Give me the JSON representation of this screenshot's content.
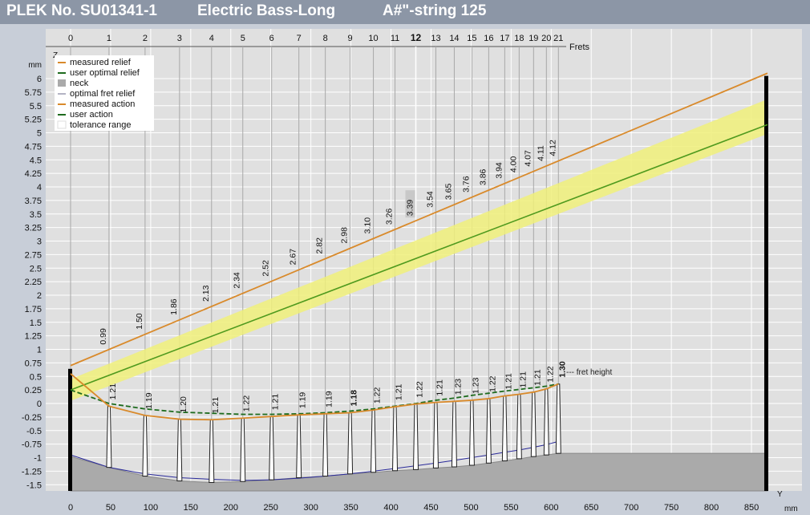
{
  "window": {
    "title_parts": [
      "PLEK No. SU01341-1",
      "Electric Bass-Long",
      "A#\"-string 125"
    ]
  },
  "chart_data": {
    "type": "line",
    "xlabel": "mm",
    "ylabel": "mm",
    "x_axis_letter": "Y",
    "y_axis_letter": "Z",
    "top_axis_label": "Frets",
    "fret_height_label": "--- fret height",
    "xlim": [
      -5,
      870
    ],
    "ylim": [
      -1.65,
      6.4
    ],
    "x_ticks": [
      0,
      50,
      100,
      150,
      200,
      250,
      300,
      350,
      400,
      450,
      500,
      550,
      600,
      650,
      700,
      750,
      800,
      850
    ],
    "y_ticks": [
      -1.5,
      -1.25,
      -1,
      -0.75,
      -0.5,
      -0.25,
      0,
      0.25,
      0.5,
      0.75,
      1,
      1.25,
      1.5,
      1.75,
      2,
      2.25,
      2.5,
      2.75,
      3,
      3.25,
      3.5,
      3.75,
      4,
      4.25,
      4.5,
      4.75,
      5,
      5.25,
      5.5,
      5.75,
      6
    ],
    "grid": true,
    "legend_position": "top-left",
    "legend": [
      {
        "label": "measured relief",
        "color": "#d98a2b",
        "kind": "line"
      },
      {
        "label": "user optimal relief",
        "color": "#1e6b1e",
        "kind": "line"
      },
      {
        "label": "neck",
        "color": "#aaaaaa",
        "kind": "box"
      },
      {
        "label": "optimal fret relief",
        "color": "#6a6a8a",
        "kind": "thinline"
      },
      {
        "label": "measured action",
        "color": "#d98a2b",
        "kind": "line"
      },
      {
        "label": "user action",
        "color": "#1e6b1e",
        "kind": "line"
      },
      {
        "label": "tolerance range",
        "color": "#ffffff",
        "kind": "box"
      }
    ],
    "frets": [
      {
        "n": "0",
        "x": 0
      },
      {
        "n": "1",
        "x": 48
      },
      {
        "n": "2",
        "x": 93
      },
      {
        "n": "3",
        "x": 136
      },
      {
        "n": "4",
        "x": 176
      },
      {
        "n": "5",
        "x": 215
      },
      {
        "n": "6",
        "x": 251
      },
      {
        "n": "7",
        "x": 285
      },
      {
        "n": "8",
        "x": 318
      },
      {
        "n": "9",
        "x": 349
      },
      {
        "n": "10",
        "x": 378
      },
      {
        "n": "11",
        "x": 405
      },
      {
        "n": "12",
        "x": 431
      },
      {
        "n": "13",
        "x": 456
      },
      {
        "n": "14",
        "x": 479
      },
      {
        "n": "15",
        "x": 501
      },
      {
        "n": "16",
        "x": 522
      },
      {
        "n": "17",
        "x": 542
      },
      {
        "n": "18",
        "x": 560
      },
      {
        "n": "19",
        "x": 578
      },
      {
        "n": "20",
        "x": 594
      },
      {
        "n": "21",
        "x": 609
      }
    ],
    "highlight_fret": "12",
    "action_values": [
      "0.99",
      "1.50",
      "1.86",
      "2.13",
      "2.34",
      "2.52",
      "2.67",
      "2.82",
      "2.98",
      "3.10",
      "3.26",
      "3.39",
      "3.54",
      "3.65",
      "3.76",
      "3.86",
      "3.94",
      "4.00",
      "4.07",
      "4.11",
      "4.12"
    ],
    "fret_heights": [
      "1.21",
      "1.19",
      "1.20",
      "1.21",
      "1.22",
      "1.21",
      "1.19",
      "1.19",
      "1.18",
      "1.22",
      "1.21",
      "1.22",
      "1.21",
      "1.23",
      "1.23",
      "1.22",
      "1.21",
      "1.21",
      "1.21",
      "1.22",
      "1.30"
    ],
    "bold_fret_heights": [
      8,
      20
    ],
    "series": [
      {
        "name": "measured action",
        "color": "#d98a2b",
        "x": [
          0,
          870
        ],
        "y": [
          0.7,
          6.1
        ]
      },
      {
        "name": "user action",
        "color": "#4f9a1e",
        "x": [
          0,
          870
        ],
        "y": [
          0.25,
          5.15
        ]
      },
      {
        "name": "tolerance range",
        "color": "#f0f07a",
        "x": [
          0,
          870
        ],
        "upper": [
          0.45,
          5.62
        ],
        "lower": [
          0.05,
          4.98
        ]
      },
      {
        "name": "measured relief",
        "color": "#d98a2b",
        "x": [
          0,
          48,
          93,
          136,
          176,
          215,
          251,
          285,
          318,
          349,
          378,
          405,
          431,
          456,
          479,
          501,
          522,
          542,
          560,
          578,
          594,
          609
        ],
        "y": [
          0.55,
          -0.05,
          -0.22,
          -0.29,
          -0.3,
          -0.27,
          -0.24,
          -0.21,
          -0.19,
          -0.17,
          -0.12,
          -0.06,
          -0.01,
          0.02,
          0.04,
          0.06,
          0.09,
          0.14,
          0.17,
          0.21,
          0.27,
          0.36
        ]
      },
      {
        "name": "user optimal relief",
        "color": "#1e6b1e",
        "x": [
          0,
          48,
          93,
          136,
          176,
          215,
          251,
          285,
          318,
          349,
          378,
          405,
          431,
          456,
          479,
          501,
          522,
          542,
          560,
          578,
          594,
          609
        ],
        "y": [
          0.25,
          0.0,
          -0.1,
          -0.16,
          -0.18,
          -0.2,
          -0.2,
          -0.19,
          -0.17,
          -0.14,
          -0.1,
          -0.05,
          0.0,
          0.06,
          0.1,
          0.15,
          0.19,
          0.23,
          0.26,
          0.29,
          0.32,
          0.36
        ]
      },
      {
        "name": "neck",
        "color": "#aaaaaa",
        "x": [
          0,
          48,
          93,
          136,
          176,
          215,
          251,
          285,
          318,
          349,
          378,
          405,
          431,
          456,
          479,
          501,
          522,
          542,
          560,
          578,
          594,
          609,
          870
        ],
        "y": [
          -0.98,
          -1.18,
          -1.34,
          -1.43,
          -1.46,
          -1.44,
          -1.41,
          -1.37,
          -1.34,
          -1.3,
          -1.27,
          -1.24,
          -1.22,
          -1.19,
          -1.17,
          -1.14,
          -1.1,
          -1.06,
          -1.02,
          -0.98,
          -0.95,
          -0.92,
          -0.92
        ]
      },
      {
        "name": "optimal fret relief",
        "color": "#2a2a9a",
        "x": [
          0,
          48,
          93,
          136,
          176,
          215,
          251,
          285,
          318,
          349,
          378,
          405,
          431,
          456,
          479,
          501,
          522,
          542,
          560,
          578,
          594,
          609
        ],
        "y": [
          -0.95,
          -1.18,
          -1.3,
          -1.37,
          -1.4,
          -1.42,
          -1.41,
          -1.38,
          -1.34,
          -1.3,
          -1.25,
          -1.2,
          -1.15,
          -1.1,
          -1.05,
          -1.0,
          -0.95,
          -0.9,
          -0.86,
          -0.81,
          -0.76,
          -0.7
        ]
      }
    ]
  }
}
